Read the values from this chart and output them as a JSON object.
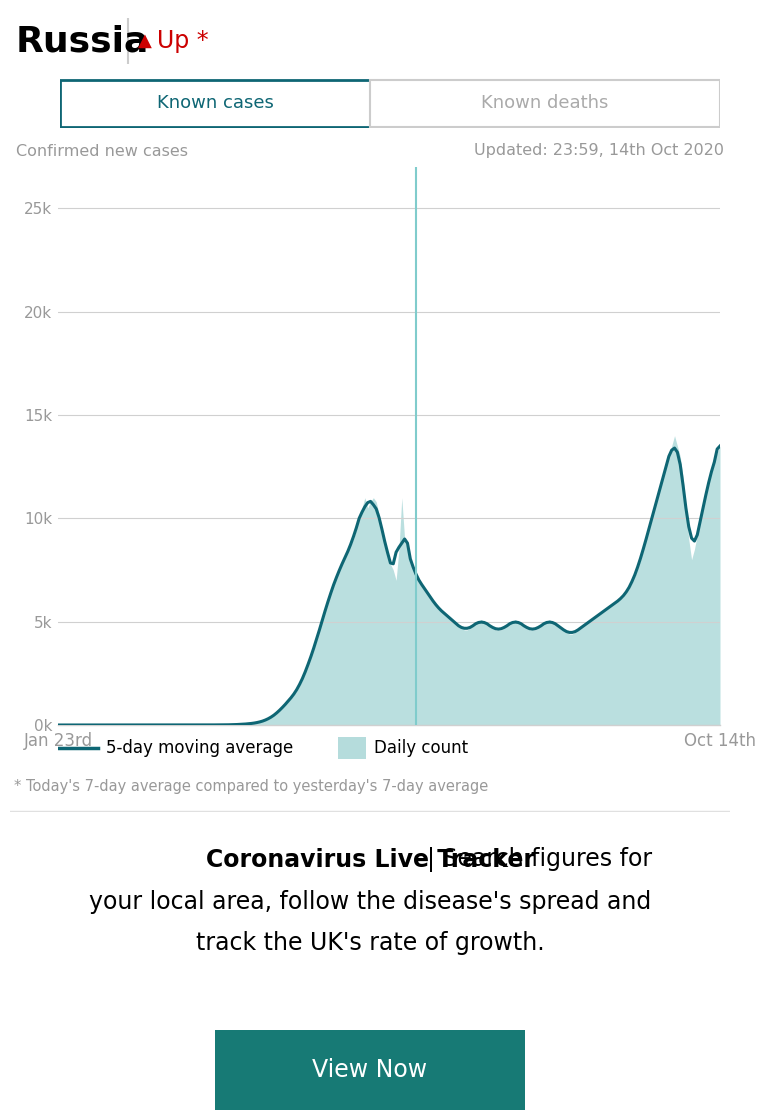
{
  "title": "Russia",
  "trend_text": " Up *",
  "tab1": "Known cases",
  "tab2": "Known deaths",
  "label_left": "Confirmed new cases",
  "label_right": "Updated: 23:59, 14th Oct 2020",
  "x_label_left": "Jan 23rd",
  "x_label_right": "Oct 14th",
  "yticks": [
    0,
    5000,
    10000,
    15000,
    20000,
    25000
  ],
  "ytick_labels": [
    "0k",
    "5k",
    "10k",
    "15k",
    "20k",
    "25k"
  ],
  "ylim": [
    0,
    27000
  ],
  "legend_line": "5-day moving average",
  "legend_fill": "Daily count",
  "footnote": "* Today's 7-day average compared to yesterday's 7-day average",
  "button_text": "View Now",
  "teal_dark": "#0e6674",
  "teal_light": "#96cece",
  "teal_button": "#177a75",
  "red": "#cc0000",
  "gray_text": "#999999",
  "gray_line": "#d0d0d0",
  "white": "#ffffff",
  "black": "#000000",
  "tab_border": "#0e6674",
  "tab_text_active": "#0e6674",
  "tab_text_inactive": "#aaaaaa",
  "vertical_line_color": "#80cccc",
  "vline_index": 126,
  "daily_counts": [
    0,
    0,
    0,
    0,
    0,
    0,
    0,
    0,
    0,
    0,
    0,
    0,
    0,
    0,
    0,
    0,
    0,
    0,
    0,
    0,
    0,
    0,
    0,
    0,
    0,
    0,
    0,
    0,
    0,
    0,
    0,
    0,
    0,
    0,
    0,
    0,
    0,
    0,
    0,
    0,
    0,
    0,
    0,
    0,
    0,
    0,
    1,
    1,
    2,
    2,
    3,
    3,
    4,
    4,
    4,
    5,
    5,
    6,
    7,
    8,
    10,
    13,
    17,
    22,
    28,
    36,
    45,
    57,
    71,
    89,
    110,
    140,
    180,
    230,
    290,
    370,
    460,
    570,
    700,
    850,
    1000,
    1150,
    1300,
    1480,
    1660,
    1900,
    2200,
    2550,
    2900,
    3300,
    3700,
    4100,
    4600,
    5100,
    5500,
    6000,
    6400,
    6800,
    7200,
    7500,
    7800,
    8100,
    8400,
    8700,
    9000,
    9500,
    10000,
    10500,
    11000,
    10500,
    10800,
    11000,
    10800,
    10200,
    9500,
    8700,
    8200,
    7800,
    7500,
    7000,
    8500,
    11000,
    9000,
    8500,
    8000,
    7500,
    7200,
    7000,
    6800,
    6600,
    6400,
    6200,
    6000,
    5800,
    5600,
    5500,
    5400,
    5300,
    5200,
    5000,
    4900,
    4800,
    4700,
    4600,
    4600,
    4700,
    4800,
    4900,
    5000,
    5100,
    5000,
    4900,
    4800,
    4700,
    4600,
    4600,
    4600,
    4700,
    4800,
    4900,
    5000,
    5100,
    5000,
    4900,
    4800,
    4700,
    4600,
    4600,
    4600,
    4700,
    4800,
    4900,
    5000,
    5100,
    5000,
    4900,
    4800,
    4700,
    4600,
    4500,
    4400,
    4400,
    4500,
    4600,
    4700,
    4800,
    4900,
    5000,
    5100,
    5200,
    5300,
    5400,
    5500,
    5600,
    5700,
    5800,
    5900,
    6000,
    6100,
    6200,
    6400,
    6600,
    6900,
    7200,
    7600,
    8000,
    8500,
    9000,
    9500,
    10000,
    10500,
    11000,
    11500,
    12000,
    12500,
    13000,
    13500,
    14000,
    13500,
    13000,
    12000,
    10500,
    9000,
    8000,
    8500,
    9200,
    9800,
    10500,
    11200,
    11800,
    12300,
    12800,
    13200,
    13500
  ]
}
